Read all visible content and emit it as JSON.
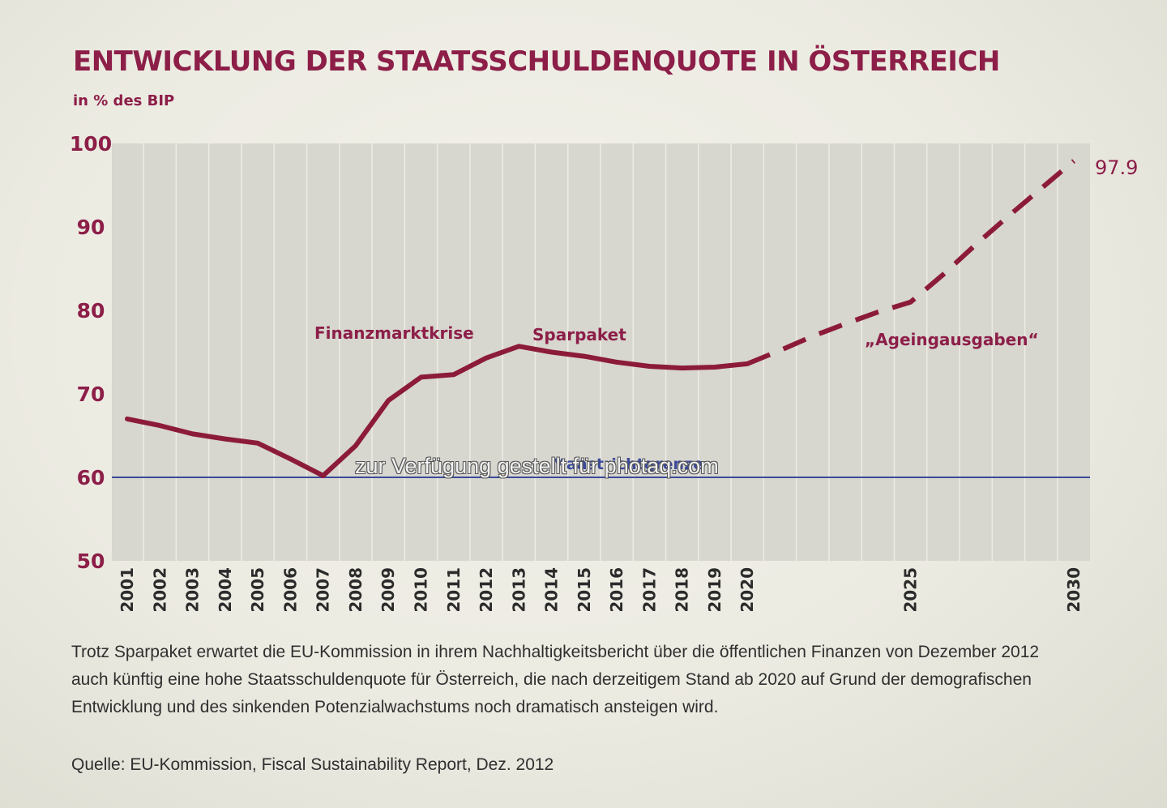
{
  "header": {
    "title": "ENTWICKLUNG DER STAATSSCHULDENQUOTE IN ÖSTERREICH",
    "subtitle": "in % des BIP"
  },
  "chart_data": {
    "type": "line",
    "title": "ENTWICKLUNG DER STAATSSCHULDENQUOTE IN ÖSTERREICH",
    "subtitle": "in % des BIP",
    "ylim": [
      50,
      100
    ],
    "y_ticks": [
      100,
      90,
      80,
      70,
      60,
      50
    ],
    "x_tick_labels": [
      "2001",
      "2002",
      "2003",
      "2004",
      "2005",
      "2006",
      "2007",
      "2008",
      "2009",
      "2010",
      "2011",
      "2012",
      "2013",
      "2014",
      "2015",
      "2016",
      "2017",
      "2018",
      "2019",
      "2020",
      "2025",
      "2030"
    ],
    "grid": true,
    "series": [
      {
        "style": "solid",
        "x": [
          2001,
          2002,
          2003,
          2004,
          2005,
          2006,
          2007,
          2008,
          2009,
          2010,
          2011,
          2012,
          2013,
          2014,
          2015,
          2016,
          2017,
          2018,
          2019,
          2020
        ],
        "y": [
          67.0,
          66.2,
          65.2,
          64.6,
          64.1,
          62.2,
          60.2,
          63.8,
          69.2,
          72.0,
          72.3,
          74.3,
          75.7,
          75.0,
          74.5,
          73.8,
          73.3,
          73.1,
          73.2,
          73.6
        ]
      },
      {
        "style": "dashed",
        "x": [
          2020,
          2021,
          2022,
          2023,
          2024,
          2025,
          2026,
          2027,
          2028,
          2029,
          2030
        ],
        "y": [
          73.6,
          75.2,
          76.9,
          78.4,
          79.8,
          81.0,
          84.3,
          87.9,
          91.3,
          94.6,
          97.9
        ]
      }
    ],
    "reference_line": {
      "y": 60,
      "label": "Maastrichtgrenze",
      "color": "#3b4a9a"
    },
    "annotations": [
      {
        "text": "Finanzmarktkrise"
      },
      {
        "text": "Sparpaket"
      },
      {
        "text": "„Ageingausgaben“"
      },
      {
        "text": "97.9"
      }
    ],
    "colors": {
      "line": "#8c1b3a",
      "label": "#8c1e48",
      "plot_bg": "#d7d6cf",
      "grid": "#ecebe4"
    }
  },
  "footnote": "Trotz Sparpaket erwartet die EU-Kommission in ihrem Nachhaltigkeitsbericht über die öffentlichen Finanzen von Dezember 2012 auch künftig eine hohe Staatsschuldenquote für Österreich, die nach derzeitigem Stand ab 2020 auf Grund der demografischen Entwicklung und des sinkenden Potenzialwachstums noch dramatisch ansteigen wird.",
  "source": "Quelle: EU-Kommission, Fiscal Sustainability Report, Dez. 2012",
  "watermark": "zur Verfügung gestellt für photaq.com"
}
